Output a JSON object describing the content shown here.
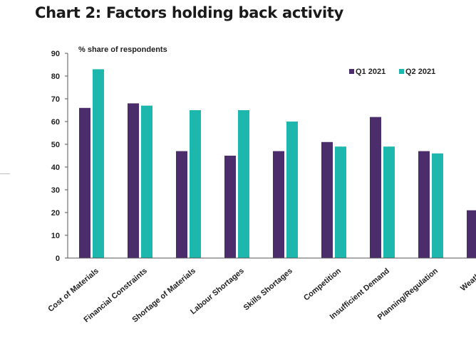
{
  "title": "Chart 2: Factors holding back activity",
  "chart_data": {
    "type": "bar",
    "title": "Chart 2: Factors holding back activity",
    "ylabel": "% share of respondents",
    "ylim": [
      0,
      90
    ],
    "yticks": [
      0,
      10,
      20,
      30,
      40,
      50,
      60,
      70,
      80,
      90
    ],
    "categories": [
      "Cost of Materials",
      "Financial Constraints",
      "Shortage of Materials",
      "Labour Shortages",
      "Skills Shortages",
      "Competition",
      "Insufficient Demand",
      "Planning/Regulation",
      "Weather"
    ],
    "series": [
      {
        "name": "Q1 2021",
        "color": "#4b2d6b",
        "values": [
          66,
          68,
          47,
          45,
          47,
          51,
          62,
          47,
          21
        ]
      },
      {
        "name": "Q2 2021",
        "color": "#1db7ad",
        "values": [
          83,
          67,
          65,
          65,
          60,
          49,
          49,
          46,
          null
        ]
      }
    ],
    "legend_position": "top-right",
    "grid": false
  }
}
